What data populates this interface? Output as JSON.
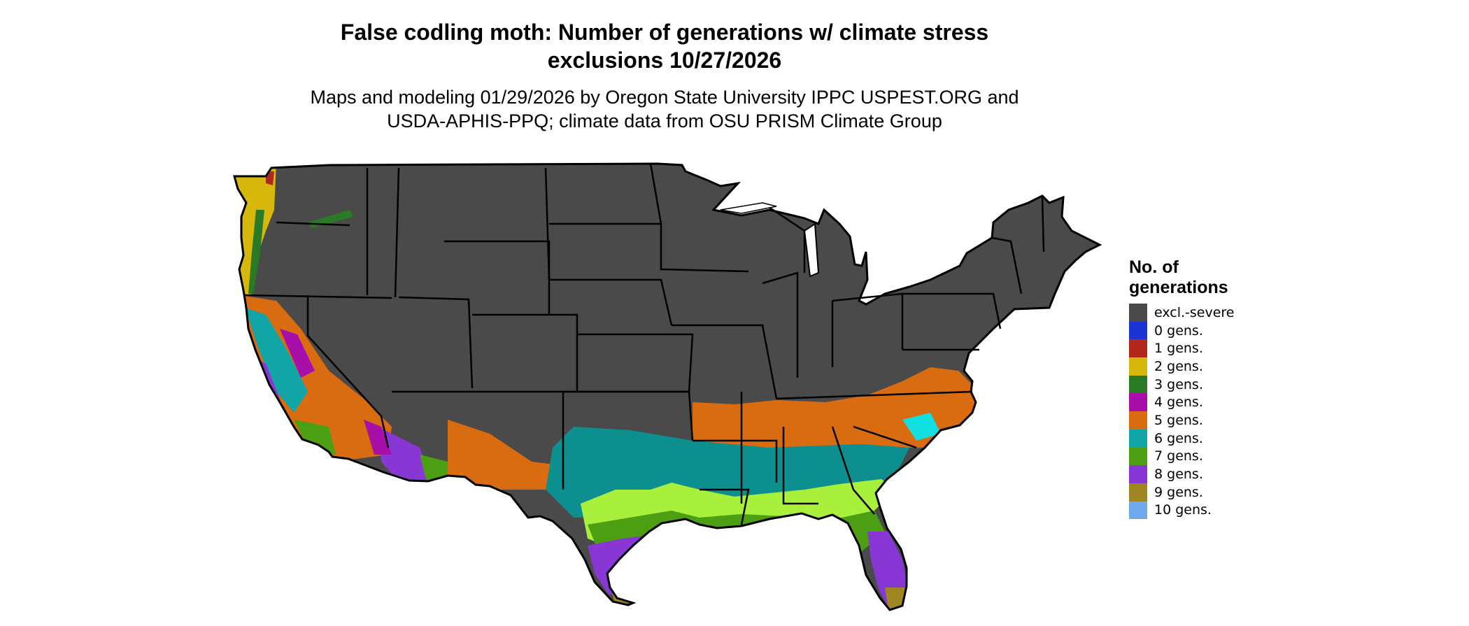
{
  "title": {
    "line1": "False codling moth: Number of generations w/ climate stress",
    "line2": "exclusions 10/27/2026"
  },
  "subtitle": {
    "line1": "Maps and modeling 01/29/2026 by Oregon State University IPPC USPEST.ORG and",
    "line2": "USDA-APHIS-PPQ; climate data from OSU PRISM Climate Group"
  },
  "legend": {
    "title_line1": "No. of",
    "title_line2": "generations",
    "items": [
      {
        "label": "excl.-severe",
        "color": "#4a4a4a"
      },
      {
        "label": "0 gens.",
        "color": "#1a35d4"
      },
      {
        "label": "1 gens.",
        "color": "#b2271b"
      },
      {
        "label": "2 gens.",
        "color": "#d6b80c"
      },
      {
        "label": "3 gens.",
        "color": "#2a7a25"
      },
      {
        "label": "4 gens.",
        "color": "#a80ea8"
      },
      {
        "label": "5 gens.",
        "color": "#d96b10"
      },
      {
        "label": "6 gens.",
        "color": "#12a5a5"
      },
      {
        "label": "7 gens.",
        "color": "#4c9e12"
      },
      {
        "label": "8 gens.",
        "color": "#8836d4"
      },
      {
        "label": "9 gens.",
        "color": "#9e8720"
      },
      {
        "label": "10 gens.",
        "color": "#6fa8ec"
      }
    ]
  },
  "map": {
    "region": "Contiguous United States",
    "bands_description_colors": {
      "excluded": "#4a4a4a",
      "lime": "#a8f03c"
    }
  }
}
